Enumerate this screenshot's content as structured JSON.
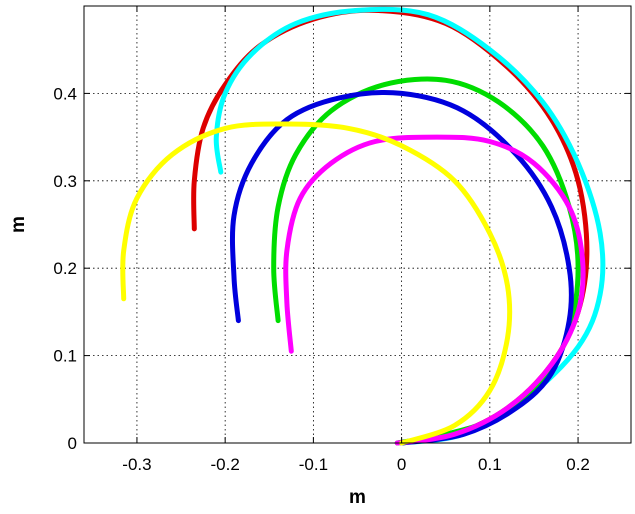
{
  "chart_data": {
    "type": "line",
    "title": "",
    "xlabel": "m",
    "ylabel": "m",
    "xlim": [
      -0.36,
      0.26
    ],
    "ylim": [
      0,
      0.5
    ],
    "grid": true,
    "x_ticks": [
      -0.3,
      -0.2,
      -0.1,
      0,
      0.1,
      0.2
    ],
    "x_tick_labels": [
      "-0.3",
      "-0.2",
      "-0.1",
      "0",
      "0.1",
      "0.2"
    ],
    "y_ticks": [
      0,
      0.1,
      0.2,
      0.3,
      0.4
    ],
    "y_tick_labels": [
      "0",
      "0.1",
      "0.2",
      "0.3",
      "0.4"
    ],
    "series": [
      {
        "color": "#dd0000",
        "x": [
          0.0,
          0.06,
          0.12,
          0.17,
          0.2,
          0.21,
          0.2,
          0.17,
          0.12,
          0.05,
          -0.03,
          -0.1,
          -0.16,
          -0.2,
          -0.225,
          -0.235,
          -0.235
        ],
        "y": [
          0.0,
          0.01,
          0.04,
          0.09,
          0.15,
          0.22,
          0.3,
          0.37,
          0.43,
          0.48,
          0.495,
          0.485,
          0.455,
          0.41,
          0.36,
          0.3,
          0.245
        ]
      },
      {
        "color": "#00ffff",
        "x": [
          0.0,
          0.07,
          0.14,
          0.2,
          0.225,
          0.225,
          0.2,
          0.16,
          0.1,
          0.03,
          -0.05,
          -0.12,
          -0.17,
          -0.2,
          -0.21,
          -0.205
        ],
        "y": [
          0.0,
          0.01,
          0.05,
          0.11,
          0.17,
          0.24,
          0.32,
          0.39,
          0.45,
          0.49,
          0.495,
          0.48,
          0.445,
          0.4,
          0.35,
          0.31
        ]
      },
      {
        "color": "#00dd00",
        "x": [
          -0.005,
          0.05,
          0.11,
          0.16,
          0.19,
          0.2,
          0.19,
          0.16,
          0.11,
          0.05,
          -0.02,
          -0.08,
          -0.12,
          -0.14,
          -0.145,
          -0.14
        ],
        "y": [
          0.0,
          0.01,
          0.03,
          0.07,
          0.13,
          0.2,
          0.27,
          0.34,
          0.39,
          0.415,
          0.41,
          0.38,
          0.33,
          0.27,
          0.2,
          0.14
        ]
      },
      {
        "color": "#0000dd",
        "x": [
          0.0,
          0.07,
          0.13,
          0.17,
          0.19,
          0.19,
          0.17,
          0.13,
          0.07,
          0.0,
          -0.07,
          -0.13,
          -0.17,
          -0.19,
          -0.19,
          -0.185
        ],
        "y": [
          0.0,
          0.01,
          0.04,
          0.08,
          0.14,
          0.2,
          0.27,
          0.33,
          0.38,
          0.4,
          0.395,
          0.37,
          0.32,
          0.26,
          0.19,
          0.14
        ]
      },
      {
        "color": "#ff00ff",
        "x": [
          -0.005,
          0.06,
          0.12,
          0.17,
          0.2,
          0.205,
          0.19,
          0.15,
          0.1,
          0.04,
          -0.03,
          -0.08,
          -0.115,
          -0.13,
          -0.13,
          -0.125
        ],
        "y": [
          0.0,
          0.01,
          0.04,
          0.09,
          0.15,
          0.21,
          0.27,
          0.32,
          0.345,
          0.35,
          0.345,
          0.32,
          0.28,
          0.22,
          0.16,
          0.105
        ]
      },
      {
        "color": "#ffff00",
        "x": [
          0.0,
          0.06,
          0.1,
          0.12,
          0.12,
          0.1,
          0.06,
          0.0,
          -0.06,
          -0.13,
          -0.2,
          -0.26,
          -0.3,
          -0.315,
          -0.315
        ],
        "y": [
          0.0,
          0.02,
          0.06,
          0.12,
          0.18,
          0.24,
          0.3,
          0.34,
          0.36,
          0.365,
          0.36,
          0.33,
          0.28,
          0.22,
          0.165
        ]
      }
    ]
  }
}
